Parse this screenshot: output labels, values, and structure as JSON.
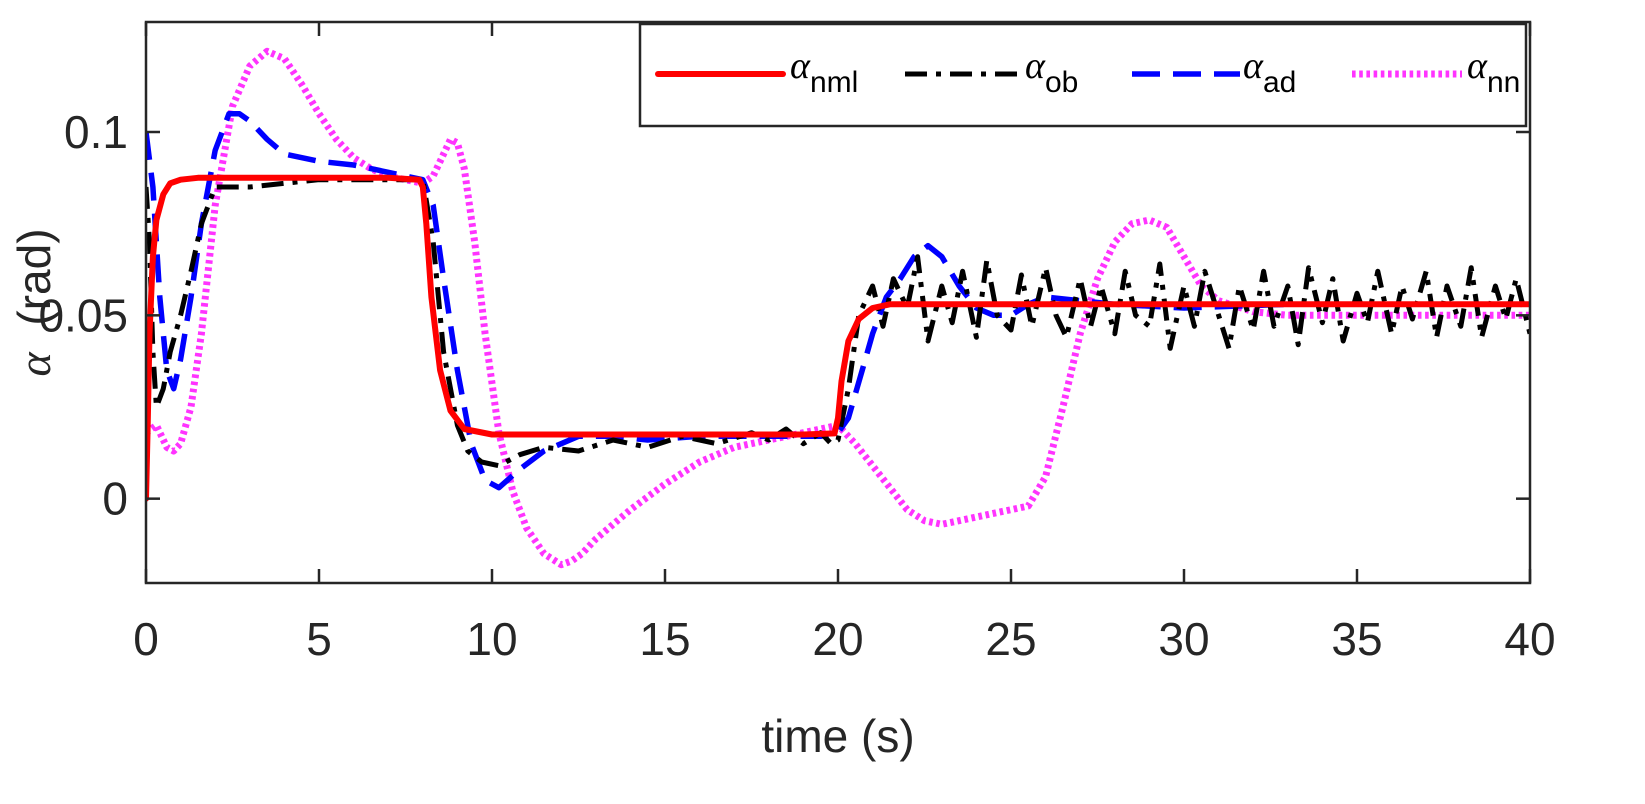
{
  "chart_data": {
    "type": "line",
    "title": "",
    "xlabel": "time (s)",
    "ylabel_symbol": "α",
    "ylabel_unit": "(rad)",
    "xlim": [
      0,
      40
    ],
    "ylim": [
      -0.023,
      0.13
    ],
    "xticks": [
      0,
      5,
      10,
      15,
      20,
      25,
      30,
      35,
      40
    ],
    "xtick_labels": [
      "0",
      "5",
      "10",
      "15",
      "20",
      "25",
      "30",
      "35",
      "40"
    ],
    "yticks": [
      0,
      0.05,
      0.1
    ],
    "ytick_labels": [
      "0",
      "0.05",
      "0.1"
    ],
    "grid": false,
    "legend_position": "top-right",
    "series": [
      {
        "name": "α_nml",
        "symbol": "α",
        "subscript": "nml",
        "color": "#ff0000",
        "style": "solid",
        "x": [
          0,
          0.05,
          0.1,
          0.2,
          0.3,
          0.5,
          0.7,
          1.0,
          1.5,
          3,
          5,
          7,
          7.9,
          8.0,
          8.1,
          8.25,
          8.5,
          8.8,
          9.2,
          10,
          13,
          16,
          19,
          19.9,
          20.0,
          20.1,
          20.3,
          20.6,
          21.0,
          21.5,
          22,
          25,
          30,
          35,
          40
        ],
        "y": [
          0,
          0.02,
          0.045,
          0.066,
          0.076,
          0.083,
          0.086,
          0.087,
          0.0875,
          0.0875,
          0.0875,
          0.0875,
          0.087,
          0.085,
          0.075,
          0.055,
          0.035,
          0.024,
          0.019,
          0.0175,
          0.0175,
          0.0175,
          0.0175,
          0.0178,
          0.022,
          0.032,
          0.043,
          0.049,
          0.052,
          0.053,
          0.053,
          0.053,
          0.053,
          0.053,
          0.053
        ]
      },
      {
        "name": "α_ob",
        "symbol": "α",
        "subscript": "ob",
        "color": "#000000",
        "style": "dash-dot",
        "x": [
          0,
          0.1,
          0.2,
          0.3,
          0.5,
          0.7,
          1.0,
          1.3,
          1.6,
          2.0,
          3.0,
          4.0,
          5.0,
          6.0,
          7.0,
          8.0,
          8.3,
          8.6,
          9.0,
          9.3,
          9.7,
          10.2,
          10.8,
          11.5,
          12.5,
          13.5,
          14.5,
          15.5,
          16.5,
          17.5,
          18.0,
          18.5,
          19.0,
          19.5,
          19.8,
          20.0,
          20.3,
          20.6,
          21.0,
          21.3,
          21.6,
          22.0,
          22.3,
          22.6,
          23.0,
          23.3,
          23.6,
          24.0,
          24.3,
          24.6,
          25.0,
          25.3,
          25.6,
          26.0,
          26.3,
          26.6,
          27.0,
          27.3,
          27.6,
          28.0,
          28.3,
          28.6,
          29.0,
          29.3,
          29.6,
          30.0,
          30.3,
          30.6,
          31.0,
          31.3,
          31.6,
          32.0,
          32.3,
          32.6,
          33.0,
          33.3,
          33.6,
          34.0,
          34.3,
          34.6,
          35.0,
          35.3,
          35.6,
          36.0,
          36.3,
          36.6,
          37.0,
          37.3,
          37.6,
          38.0,
          38.3,
          38.6,
          39.0,
          39.3,
          39.6,
          40.0
        ],
        "y": [
          0.085,
          0.07,
          0.04,
          0.025,
          0.03,
          0.04,
          0.05,
          0.062,
          0.075,
          0.085,
          0.085,
          0.086,
          0.087,
          0.087,
          0.087,
          0.087,
          0.07,
          0.04,
          0.02,
          0.013,
          0.01,
          0.009,
          0.012,
          0.014,
          0.013,
          0.016,
          0.014,
          0.017,
          0.015,
          0.018,
          0.016,
          0.019,
          0.015,
          0.018,
          0.015,
          0.016,
          0.03,
          0.05,
          0.058,
          0.047,
          0.06,
          0.052,
          0.066,
          0.043,
          0.058,
          0.048,
          0.062,
          0.044,
          0.065,
          0.05,
          0.046,
          0.061,
          0.047,
          0.063,
          0.05,
          0.044,
          0.06,
          0.047,
          0.058,
          0.045,
          0.062,
          0.05,
          0.047,
          0.064,
          0.041,
          0.058,
          0.047,
          0.062,
          0.05,
          0.041,
          0.058,
          0.046,
          0.062,
          0.047,
          0.058,
          0.042,
          0.063,
          0.048,
          0.06,
          0.043,
          0.056,
          0.048,
          0.062,
          0.045,
          0.058,
          0.049,
          0.062,
          0.044,
          0.058,
          0.047,
          0.063,
          0.044,
          0.058,
          0.049,
          0.06,
          0.045
        ]
      },
      {
        "name": "α_ad",
        "symbol": "α",
        "subscript": "ad",
        "color": "#0000ff",
        "style": "dashed",
        "x": [
          0,
          0.2,
          0.4,
          0.6,
          0.8,
          1.0,
          1.3,
          1.6,
          2.0,
          2.4,
          2.7,
          3.0,
          3.5,
          4.0,
          5.0,
          6.0,
          7.0,
          7.5,
          8.0,
          8.3,
          8.6,
          9.0,
          9.4,
          9.8,
          10.2,
          10.8,
          11.5,
          12.5,
          13.5,
          14.5,
          16.0,
          18.0,
          19.5,
          20.0,
          20.3,
          20.7,
          21.0,
          21.4,
          21.8,
          22.2,
          22.6,
          23.0,
          23.5,
          24.0,
          24.5,
          25.0,
          25.5,
          26.0,
          27.0,
          28.0,
          30.0,
          33.0,
          36.0,
          40.0
        ],
        "y": [
          0.1,
          0.085,
          0.055,
          0.035,
          0.03,
          0.038,
          0.055,
          0.075,
          0.095,
          0.105,
          0.105,
          0.103,
          0.098,
          0.094,
          0.092,
          0.091,
          0.089,
          0.088,
          0.087,
          0.08,
          0.06,
          0.035,
          0.015,
          0.005,
          0.003,
          0.008,
          0.013,
          0.017,
          0.017,
          0.016,
          0.017,
          0.017,
          0.017,
          0.018,
          0.022,
          0.035,
          0.045,
          0.055,
          0.06,
          0.066,
          0.069,
          0.066,
          0.058,
          0.052,
          0.05,
          0.05,
          0.053,
          0.055,
          0.054,
          0.053,
          0.052,
          0.053,
          0.053,
          0.053
        ]
      },
      {
        "name": "α_nn",
        "symbol": "α",
        "subscript": "nn",
        "color": "#ff33ff",
        "style": "dotted",
        "x": [
          0,
          0.3,
          0.6,
          0.8,
          1.0,
          1.3,
          1.6,
          2.0,
          2.5,
          3.0,
          3.5,
          4.0,
          4.5,
          5.0,
          5.5,
          6.0,
          6.5,
          7.0,
          7.5,
          8.0,
          8.3,
          8.6,
          8.8,
          9.0,
          9.2,
          9.5,
          9.8,
          10.2,
          10.6,
          11.0,
          11.5,
          12.0,
          12.3,
          12.6,
          13.0,
          14.0,
          15.0,
          16.0,
          17.0,
          18.0,
          19.0,
          20.0,
          20.5,
          21.0,
          21.5,
          22.0,
          22.5,
          23.0,
          23.5,
          24.0,
          25.0,
          25.5,
          26.0,
          26.5,
          27.0,
          27.5,
          28.0,
          28.5,
          29.0,
          29.5,
          30.0,
          30.5,
          31.0,
          32.0,
          33.0,
          35.0,
          40.0
        ],
        "y": [
          0.018,
          0.02,
          0.014,
          0.013,
          0.015,
          0.025,
          0.045,
          0.08,
          0.107,
          0.118,
          0.122,
          0.12,
          0.113,
          0.105,
          0.098,
          0.093,
          0.09,
          0.088,
          0.087,
          0.086,
          0.088,
          0.094,
          0.098,
          0.097,
          0.09,
          0.07,
          0.045,
          0.018,
          0.002,
          -0.008,
          -0.015,
          -0.018,
          -0.017,
          -0.015,
          -0.011,
          -0.003,
          0.004,
          0.01,
          0.014,
          0.016,
          0.018,
          0.02,
          0.015,
          0.009,
          0.003,
          -0.003,
          -0.006,
          -0.007,
          -0.006,
          -0.005,
          -0.003,
          -0.002,
          0.006,
          0.025,
          0.045,
          0.06,
          0.07,
          0.075,
          0.076,
          0.074,
          0.066,
          0.058,
          0.054,
          0.051,
          0.05,
          0.05,
          0.05
        ]
      }
    ]
  }
}
